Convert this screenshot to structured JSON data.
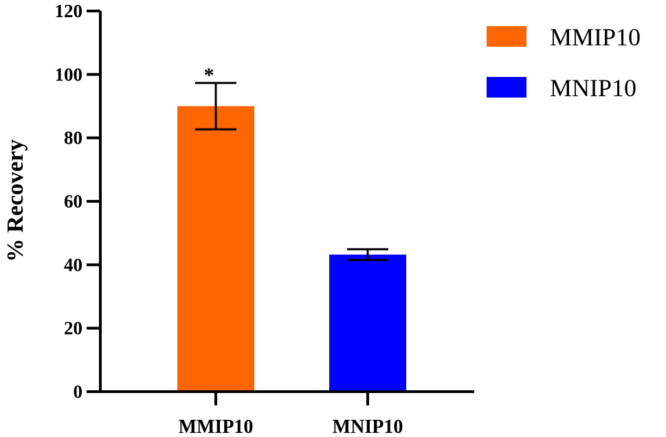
{
  "chart_data": {
    "type": "bar",
    "title": "",
    "xlabel": "",
    "ylabel": "% Recovery",
    "ylim": [
      0,
      120
    ],
    "yticks": [
      0,
      20,
      40,
      60,
      80,
      100,
      120
    ],
    "categories": [
      "MMIP10",
      "MNIP10"
    ],
    "values": [
      90,
      43.2
    ],
    "errors": [
      7.3,
      1.7
    ],
    "colors": [
      "#ff6600",
      "#0000ff"
    ],
    "annotations": [
      "*",
      ""
    ],
    "legend": {
      "position": "top-right",
      "entries": [
        {
          "label": "MMIP10",
          "color": "#ff6600"
        },
        {
          "label": "MNIP10",
          "color": "#0000ff"
        }
      ]
    },
    "grid": false
  }
}
